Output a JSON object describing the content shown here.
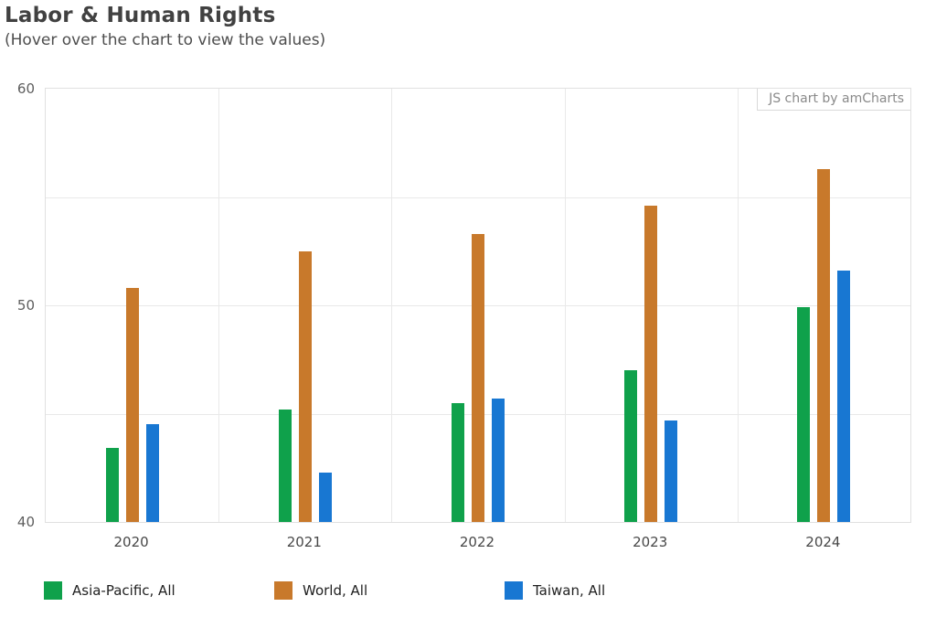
{
  "header": {
    "title": "Labor & Human Rights",
    "subtitle": "(Hover over the chart to view the values)"
  },
  "chart": {
    "watermark": "JS chart by amCharts"
  },
  "chart_data": {
    "type": "bar",
    "title": "Labor & Human Rights",
    "categories": [
      "2020",
      "2021",
      "2022",
      "2023",
      "2024"
    ],
    "series": [
      {
        "name": "Asia-Pacific, All",
        "color": "#0fa14b",
        "values": [
          43.4,
          45.2,
          45.5,
          47.0,
          49.9
        ]
      },
      {
        "name": "World, All",
        "color": "#c8792b",
        "values": [
          50.8,
          52.5,
          53.3,
          54.6,
          56.3
        ]
      },
      {
        "name": "Taiwan, All",
        "color": "#1877d2",
        "values": [
          44.5,
          42.3,
          45.7,
          44.7,
          51.6
        ]
      }
    ],
    "xlabel": "",
    "ylabel": "",
    "ylim": [
      40,
      60
    ],
    "yticks": [
      40,
      50,
      60
    ],
    "grid_step": 5,
    "grid": true,
    "legend_position": "bottom"
  }
}
